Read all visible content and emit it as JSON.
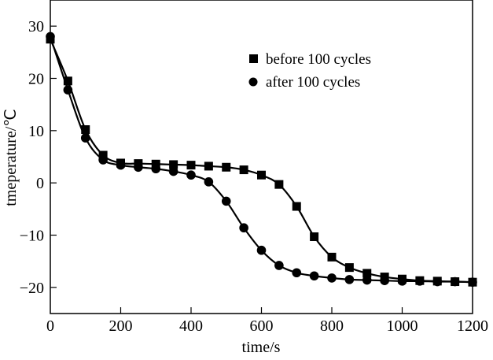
{
  "chart_data": {
    "type": "line",
    "title": "",
    "xlabel": "time/s",
    "ylabel": "tmeperature/℃",
    "xlim": [
      0,
      1200
    ],
    "ylim": [
      -25,
      35
    ],
    "xticks": [
      0,
      200,
      400,
      600,
      800,
      1000,
      1200
    ],
    "yticks": [
      -20,
      -10,
      0,
      10,
      20,
      30
    ],
    "xtick_labels": [
      "0",
      "200",
      "400",
      "600",
      "800",
      "1000",
      "1200"
    ],
    "ytick_labels": [
      "−20",
      "−10",
      "0",
      "10",
      "20",
      "30"
    ],
    "grid": false,
    "legend_position": "top-right",
    "x": [
      0,
      50,
      100,
      150,
      200,
      250,
      300,
      350,
      400,
      450,
      500,
      550,
      600,
      650,
      700,
      750,
      800,
      850,
      900,
      950,
      1000,
      1050,
      1100,
      1150,
      1200
    ],
    "series": [
      {
        "name": "before 100 cycles",
        "marker": "square",
        "color": "#000000",
        "values": [
          27.5,
          19.5,
          10.2,
          5.3,
          3.8,
          3.7,
          3.6,
          3.5,
          3.4,
          3.2,
          3.0,
          2.5,
          1.5,
          -0.3,
          -4.5,
          -10.3,
          -14.2,
          -16.2,
          -17.3,
          -18.0,
          -18.4,
          -18.7,
          -18.8,
          -18.9,
          -19.0
        ]
      },
      {
        "name": "after 100 cycles",
        "marker": "circle",
        "color": "#000000",
        "values": [
          28.0,
          17.8,
          8.6,
          4.4,
          3.4,
          3.0,
          2.7,
          2.2,
          1.5,
          0.2,
          -3.5,
          -8.6,
          -12.9,
          -15.8,
          -17.2,
          -17.8,
          -18.2,
          -18.5,
          -18.6,
          -18.7,
          -18.8,
          -18.8,
          -18.9,
          -18.9,
          -19.0
        ]
      }
    ]
  }
}
